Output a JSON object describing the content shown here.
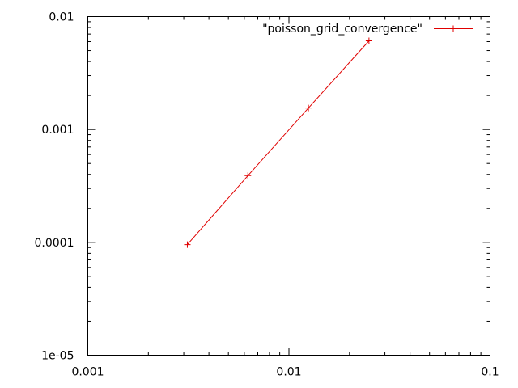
{
  "chart_data": {
    "type": "line",
    "title": "",
    "xlabel": "",
    "ylabel": "",
    "xscale": "log",
    "yscale": "log",
    "xlim": [
      0.001,
      0.1
    ],
    "ylim": [
      1e-05,
      0.01
    ],
    "grid": false,
    "legend_position": "top-right",
    "x_tick_labels": [
      "0.001",
      "0.01",
      "0.1"
    ],
    "y_tick_labels": [
      "1e-05",
      "0.0001",
      "0.001",
      "0.01"
    ],
    "series": [
      {
        "name": "\"poisson_grid_convergence\"",
        "color": "#e00000",
        "marker": "plus",
        "x": [
          0.003125,
          0.00625,
          0.0125,
          0.025
        ],
        "y": [
          9.55e-05,
          0.00039,
          0.00155,
          0.0061
        ]
      }
    ]
  }
}
